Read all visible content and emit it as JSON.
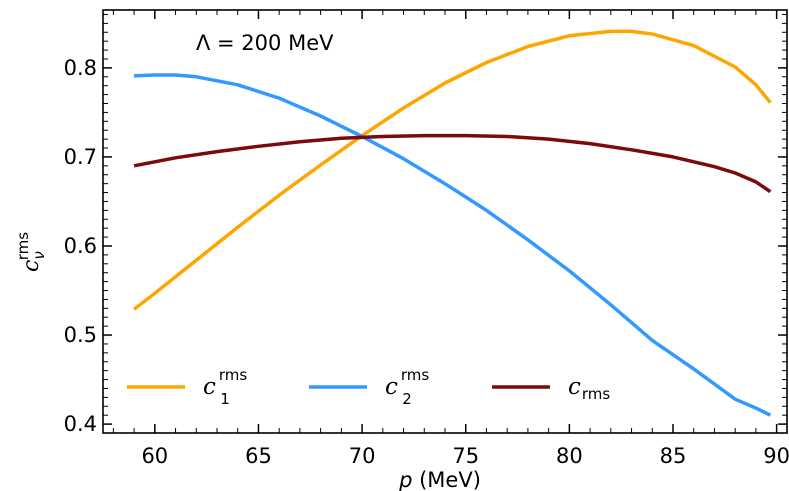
{
  "chart_data": {
    "type": "line",
    "annotation": "Λ = 200 MeV",
    "xlabel": "p (MeV)",
    "ylabel": "c_ν^rms",
    "xlim": [
      57.5,
      90.5
    ],
    "ylim": [
      0.39,
      0.865
    ],
    "xticks": [
      60,
      65,
      70,
      75,
      80,
      85,
      90
    ],
    "yticks": [
      0.4,
      0.5,
      0.6,
      0.7,
      0.8
    ],
    "xtick_labels": [
      "60",
      "65",
      "70",
      "75",
      "80",
      "85",
      "90"
    ],
    "ytick_labels": [
      "0.4",
      "0.5",
      "0.6",
      "0.7",
      "0.8"
    ],
    "legend_position": "bottom",
    "grid": false,
    "series": [
      {
        "name": "c_1^rms",
        "legend_main": "c",
        "legend_sub": "1",
        "legend_sup": "rms",
        "color": "#FFA500",
        "x": [
          59,
          60,
          62,
          64,
          66,
          68,
          70,
          72,
          74,
          76,
          78,
          80,
          82,
          83,
          84,
          86,
          88,
          89,
          89.7
        ],
        "y": [
          0.529,
          0.547,
          0.584,
          0.621,
          0.657,
          0.691,
          0.724,
          0.755,
          0.783,
          0.806,
          0.824,
          0.836,
          0.841,
          0.841,
          0.838,
          0.825,
          0.801,
          0.781,
          0.761
        ]
      },
      {
        "name": "c_2^rms",
        "legend_main": "c",
        "legend_sub": "2",
        "legend_sup": "rms",
        "color": "#3399FF",
        "x": [
          59,
          60,
          61,
          62,
          64,
          66,
          68,
          70,
          72,
          74,
          76,
          78,
          80,
          82,
          84,
          86,
          88,
          89,
          89.7
        ],
        "y": [
          0.791,
          0.792,
          0.792,
          0.79,
          0.781,
          0.766,
          0.746,
          0.723,
          0.698,
          0.67,
          0.64,
          0.607,
          0.572,
          0.534,
          0.494,
          0.462,
          0.428,
          0.418,
          0.41
        ]
      },
      {
        "name": "c_rms",
        "legend_main": "c",
        "legend_sub": "rms",
        "legend_sup": "",
        "color": "#7B0A0A",
        "x": [
          59,
          61,
          63,
          65,
          67,
          69,
          71,
          73,
          75,
          77,
          79,
          81,
          83,
          85,
          87,
          88,
          89,
          89.7
        ],
        "y": [
          0.69,
          0.699,
          0.706,
          0.712,
          0.717,
          0.721,
          0.723,
          0.724,
          0.724,
          0.723,
          0.72,
          0.715,
          0.708,
          0.7,
          0.689,
          0.682,
          0.672,
          0.661
        ]
      }
    ]
  }
}
